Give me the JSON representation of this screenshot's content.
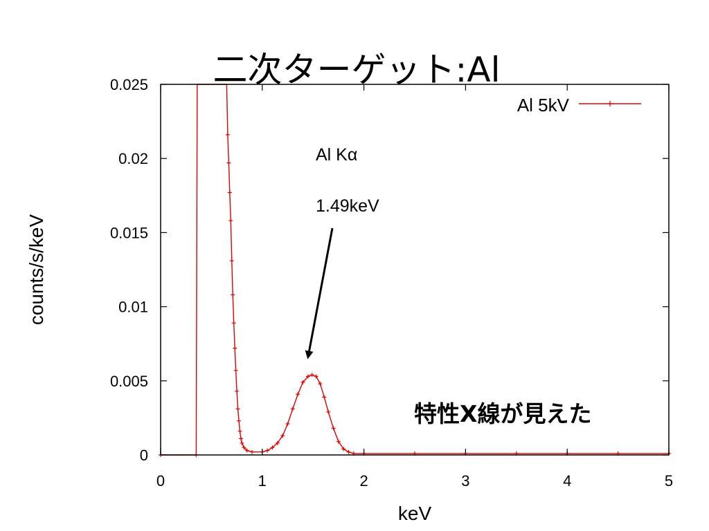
{
  "slide": {
    "title": "二次ターゲット:Al"
  },
  "chart_data": {
    "type": "line",
    "xlabel": "keV",
    "ylabel": "counts/s/keV",
    "xlim": [
      0,
      5
    ],
    "ylim": [
      0,
      0.025
    ],
    "x_ticks": [
      "0",
      "1",
      "2",
      "3",
      "4",
      "5"
    ],
    "y_ticks": [
      "0",
      "0.005",
      "0.01",
      "0.015",
      "0.02",
      "0.025"
    ],
    "grid": false,
    "legend_position": "top-right",
    "series": [
      {
        "name": "Al 5kV",
        "color": "#e00000",
        "marker": "plus",
        "points": [
          [
            0.0,
            0.0
          ],
          [
            0.35,
            0.0
          ],
          [
            0.36,
            0.025
          ],
          [
            0.65,
            0.025
          ],
          [
            0.66,
            0.0216
          ],
          [
            0.67,
            0.0197
          ],
          [
            0.68,
            0.0177
          ],
          [
            0.69,
            0.0158
          ],
          [
            0.7,
            0.0131
          ],
          [
            0.71,
            0.0108
          ],
          [
            0.72,
            0.0089
          ],
          [
            0.73,
            0.0072
          ],
          [
            0.74,
            0.0057
          ],
          [
            0.75,
            0.0043
          ],
          [
            0.76,
            0.0031
          ],
          [
            0.77,
            0.0023
          ],
          [
            0.78,
            0.0016
          ],
          [
            0.79,
            0.0011
          ],
          [
            0.8,
            0.0008
          ],
          [
            0.82,
            0.0005
          ],
          [
            0.85,
            0.0003
          ],
          [
            0.9,
            0.0002
          ],
          [
            1.0,
            0.0002
          ],
          [
            1.05,
            0.0003
          ],
          [
            1.1,
            0.0005
          ],
          [
            1.15,
            0.0008
          ],
          [
            1.2,
            0.0013
          ],
          [
            1.25,
            0.0021
          ],
          [
            1.3,
            0.0031
          ],
          [
            1.35,
            0.0041
          ],
          [
            1.4,
            0.0049
          ],
          [
            1.45,
            0.0053
          ],
          [
            1.49,
            0.0054
          ],
          [
            1.53,
            0.0053
          ],
          [
            1.57,
            0.0048
          ],
          [
            1.61,
            0.0039
          ],
          [
            1.65,
            0.0029
          ],
          [
            1.7,
            0.0018
          ],
          [
            1.75,
            0.0009
          ],
          [
            1.8,
            0.0004
          ],
          [
            1.85,
            0.0002
          ],
          [
            1.9,
            0.0001
          ],
          [
            2.0,
            0.0001
          ],
          [
            2.5,
            0.0001
          ],
          [
            3.0,
            0.0001
          ],
          [
            3.5,
            0.0001
          ],
          [
            4.0,
            0.0001
          ],
          [
            4.5,
            0.0001
          ],
          [
            5.0,
            0.0001
          ]
        ]
      }
    ],
    "annotations": {
      "peak_name": "Al Kα",
      "peak_energy": "1.49keV",
      "arrow_target": [
        1.45,
        0.0066
      ]
    }
  },
  "callout": {
    "text": "特性X線が見えた"
  }
}
